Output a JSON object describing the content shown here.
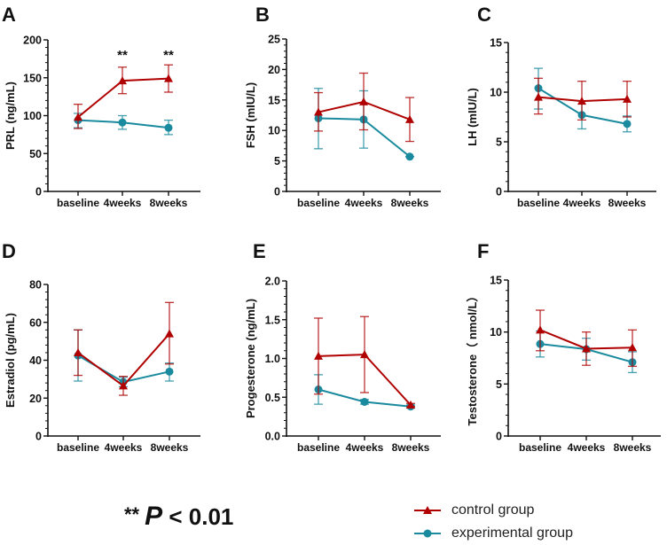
{
  "colors": {
    "control": "#b00000",
    "experimental": "#1a8a9e"
  },
  "significance_note": {
    "stars": "**",
    "p": "P",
    "rest": "< 0.01"
  },
  "legend": [
    {
      "label": "control group",
      "series": "control"
    },
    {
      "label": "experimental group",
      "series": "experimental"
    }
  ],
  "chart_data": [
    {
      "type": "line",
      "panel": "A",
      "ylabel": "PRL (ng/mL)",
      "categories": [
        "baseline",
        "4weeks",
        "8weeks"
      ],
      "ylim": [
        0,
        200
      ],
      "yticks": [
        0,
        50,
        100,
        150,
        200
      ],
      "minor": 5,
      "annotations": [
        "",
        "**",
        "**"
      ],
      "series": [
        {
          "name": "control group",
          "key": "control",
          "values": [
            98,
            146,
            149
          ],
          "err_low": [
            83,
            129,
            131
          ],
          "err_high": [
            115,
            164,
            167
          ]
        },
        {
          "name": "experimental group",
          "key": "experimental",
          "values": [
            94,
            91,
            84
          ],
          "err_low": [
            84,
            82,
            75
          ],
          "err_high": [
            103,
            100,
            94
          ]
        }
      ]
    },
    {
      "type": "line",
      "panel": "B",
      "ylabel": "FSH (mIU/L)",
      "categories": [
        "baseline",
        "4weeks",
        "8weeks"
      ],
      "ylim": [
        0,
        25
      ],
      "yticks": [
        0,
        5,
        10,
        15,
        20,
        25
      ],
      "minor": 5,
      "annotations": [
        "",
        "",
        ""
      ],
      "series": [
        {
          "name": "control group",
          "key": "control",
          "values": [
            13,
            14.7,
            11.8
          ],
          "err_low": [
            9.9,
            10.1,
            8.2
          ],
          "err_high": [
            16.2,
            19.4,
            15.4
          ]
        },
        {
          "name": "experimental group",
          "key": "experimental",
          "values": [
            12,
            11.8,
            5.7
          ],
          "err_low": [
            7,
            7.1,
            5.7
          ],
          "err_high": [
            16.9,
            16.5,
            5.7
          ]
        }
      ]
    },
    {
      "type": "line",
      "panel": "C",
      "ylabel": "LH (mIU/L)",
      "categories": [
        "baseline",
        "4weeks",
        "8weeks"
      ],
      "ylim": [
        0,
        15
      ],
      "yticks": [
        0,
        5,
        10,
        15
      ],
      "minor": 5,
      "annotations": [
        "",
        "",
        ""
      ],
      "series": [
        {
          "name": "control group",
          "key": "control",
          "values": [
            9.5,
            9.1,
            9.3
          ],
          "err_low": [
            7.8,
            7.2,
            7.5
          ],
          "err_high": [
            11.4,
            11.1,
            11.1
          ]
        },
        {
          "name": "experimental group",
          "key": "experimental",
          "values": [
            10.4,
            7.7,
            6.8
          ],
          "err_low": [
            8.3,
            6.3,
            6.0
          ],
          "err_high": [
            12.4,
            9.1,
            7.6
          ]
        }
      ]
    },
    {
      "type": "line",
      "panel": "D",
      "ylabel": "Estradiol (pg/mL)",
      "categories": [
        "baseline",
        "4weeks",
        "8weeks"
      ],
      "ylim": [
        0,
        80
      ],
      "yticks": [
        0,
        20,
        40,
        60,
        80
      ],
      "minor": 5,
      "annotations": [
        "",
        "",
        ""
      ],
      "series": [
        {
          "name": "control group",
          "key": "control",
          "values": [
            44,
            26.5,
            54
          ],
          "err_low": [
            32,
            21.5,
            38
          ],
          "err_high": [
            56,
            31.5,
            70.5
          ]
        },
        {
          "name": "experimental group",
          "key": "experimental",
          "values": [
            42.5,
            28.5,
            34
          ],
          "err_low": [
            29,
            26,
            29
          ],
          "err_high": [
            56,
            31,
            38.5
          ]
        }
      ]
    },
    {
      "type": "line",
      "panel": "E",
      "ylabel": "Progesterone (ng/mL)",
      "categories": [
        "baseline",
        "4weeks",
        "8weeks"
      ],
      "ylim": [
        0,
        2
      ],
      "yticks": [
        0.0,
        0.5,
        1.0,
        1.5,
        2.0
      ],
      "ytick_labels": [
        "0.0",
        "0.5",
        "1.0",
        "1.5",
        "2.0"
      ],
      "minor": 5,
      "annotations": [
        "",
        "",
        ""
      ],
      "series": [
        {
          "name": "control group",
          "key": "control",
          "values": [
            1.03,
            1.05,
            0.4
          ],
          "err_low": [
            0.54,
            0.56,
            0.38
          ],
          "err_high": [
            1.52,
            1.54,
            0.42
          ]
        },
        {
          "name": "experimental group",
          "key": "experimental",
          "values": [
            0.6,
            0.44,
            0.38
          ],
          "err_low": [
            0.41,
            0.41,
            0.36
          ],
          "err_high": [
            0.79,
            0.47,
            0.4
          ]
        }
      ]
    },
    {
      "type": "line",
      "panel": "F",
      "ylabel": "Testosterone（ nmol/L）",
      "categories": [
        "baseline",
        "4weeks",
        "8weeks"
      ],
      "ylim": [
        0,
        15
      ],
      "yticks": [
        0,
        5,
        10,
        15
      ],
      "minor": 5,
      "annotations": [
        "",
        "",
        ""
      ],
      "series": [
        {
          "name": "control group",
          "key": "control",
          "values": [
            10.2,
            8.4,
            8.5
          ],
          "err_low": [
            8.2,
            6.8,
            6.7
          ],
          "err_high": [
            12.1,
            10.0,
            10.2
          ]
        },
        {
          "name": "experimental group",
          "key": "experimental",
          "values": [
            8.85,
            8.35,
            7.1
          ],
          "err_low": [
            7.6,
            7.3,
            6.1
          ],
          "err_high": [
            10.1,
            9.4,
            8.1
          ]
        }
      ]
    }
  ]
}
